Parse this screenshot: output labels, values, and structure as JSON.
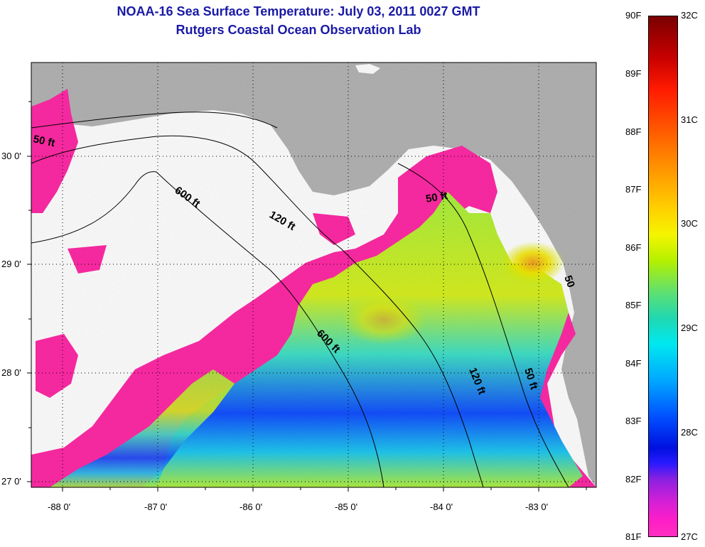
{
  "header": {
    "title": "NOAA-16 Sea Surface Temperature:  July 03, 2011 0027 GMT",
    "subtitle": "Rutgers Coastal Ocean Observation Lab"
  },
  "map": {
    "lon_ticks": [
      "-88 0'",
      "-87 0'",
      "-86 0'",
      "-85 0'",
      "-84 0'",
      "-83 0'"
    ],
    "lat_ticks": [
      "30 0'",
      "29 0'",
      "28 0'",
      "27 0'"
    ],
    "lon_range": [
      -88.35,
      -82.45
    ],
    "lat_range": [
      26.95,
      30.85
    ],
    "contour_labels": [
      "50 ft",
      "600 ft",
      "120 ft",
      "50 ft",
      "600 ft",
      "120 ft",
      "50 ft",
      "50"
    ],
    "colors": {
      "land": "#b4b4b4",
      "cloud": "#ffffff",
      "coldest": "#ff2ba6"
    }
  },
  "colorbar": {
    "fahrenheit": [
      "90F",
      "89F",
      "88F",
      "87F",
      "86F",
      "85F",
      "84F",
      "83F",
      "82F",
      "81F"
    ],
    "celsius": [
      "32C",
      "31C",
      "30C",
      "29C",
      "28C",
      "27C"
    ]
  }
}
